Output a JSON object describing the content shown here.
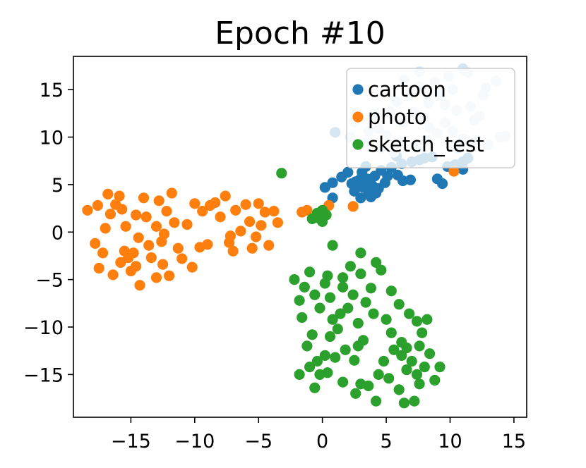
{
  "chart_data": {
    "type": "scatter",
    "title": "Epoch #10",
    "xlabel": "",
    "ylabel": "",
    "xlim": [
      -19.5,
      16
    ],
    "ylim": [
      -19.5,
      18.5
    ],
    "xticks": [
      -15,
      -10,
      -5,
      0,
      5,
      10,
      15
    ],
    "yticks": [
      15,
      10,
      5,
      0,
      -5,
      -10,
      -15
    ],
    "xtick_labels": [
      "−15",
      "−10",
      "−5",
      "0",
      "5",
      "10",
      "15"
    ],
    "ytick_labels": [
      "15",
      "10",
      "5",
      "0",
      "−5",
      "−10",
      "−15"
    ],
    "grid": false,
    "legend_placement": "top-right",
    "series": [
      {
        "name": "cartoon",
        "color": "#1f77b4",
        "points": [
          [
            0.2,
            4.7
          ],
          [
            0.8,
            5.2
          ],
          [
            0.8,
            3.6
          ],
          [
            1.5,
            5.8
          ],
          [
            2.0,
            6.3
          ],
          [
            2.5,
            4.3
          ],
          [
            2.6,
            5.3
          ],
          [
            2.9,
            5.5
          ],
          [
            3.2,
            4.7
          ],
          [
            3.5,
            5.6
          ],
          [
            3.0,
            3.6
          ],
          [
            3.6,
            4.3
          ],
          [
            3.9,
            4.9
          ],
          [
            4.1,
            5.9
          ],
          [
            3.8,
            3.7
          ],
          [
            4.4,
            4.6
          ],
          [
            4.9,
            5.2
          ],
          [
            5.1,
            5.9
          ],
          [
            5.4,
            6.8
          ],
          [
            5.9,
            6.0
          ],
          [
            6.3,
            5.4
          ],
          [
            6.9,
            5.5
          ],
          [
            6.2,
            7.2
          ],
          [
            7.0,
            7.4
          ],
          [
            7.6,
            7.6
          ],
          [
            8.0,
            7.8
          ],
          [
            8.6,
            7.9
          ],
          [
            9.0,
            5.6
          ],
          [
            9.4,
            5.1
          ],
          [
            9.8,
            6.9
          ],
          [
            10.4,
            7.1
          ],
          [
            11.0,
            6.6
          ],
          [
            11.0,
            7.4
          ],
          [
            11.4,
            7.8
          ],
          [
            3.1,
            6.3
          ],
          [
            3.4,
            6.9
          ],
          [
            4.6,
            6.5
          ],
          [
            5.8,
            8.0
          ],
          [
            2.3,
            5.1
          ],
          [
            3.7,
            5.5
          ],
          [
            4.2,
            4.1
          ],
          [
            2.8,
            4.8
          ]
        ]
      },
      {
        "name": "photo",
        "color": "#ff7f0e",
        "points": [
          [
            -18.4,
            2.3
          ],
          [
            -17.6,
            2.8
          ],
          [
            -17.8,
            -1.2
          ],
          [
            -17.0,
            0.4
          ],
          [
            -16.8,
            4.0
          ],
          [
            -17.2,
            -2.2
          ],
          [
            -17.5,
            -3.8
          ],
          [
            -16.6,
            1.9
          ],
          [
            -16.4,
            -4.5
          ],
          [
            -16.2,
            2.9
          ],
          [
            -15.9,
            3.8
          ],
          [
            -15.7,
            2.4
          ],
          [
            -15.5,
            -2.0
          ],
          [
            -15.8,
            -3.2
          ],
          [
            -15.2,
            -2.7
          ],
          [
            -15.0,
            -4.1
          ],
          [
            -14.6,
            1.8
          ],
          [
            -14.4,
            -0.6
          ],
          [
            -14.8,
            -2.2
          ],
          [
            -14.6,
            -3.6
          ],
          [
            -14.3,
            -5.6
          ],
          [
            -14.0,
            3.6
          ],
          [
            -13.8,
            1.6
          ],
          [
            -13.6,
            -1.4
          ],
          [
            -13.4,
            -2.7
          ],
          [
            -13.0,
            -4.8
          ],
          [
            -12.6,
            -1.0
          ],
          [
            -12.8,
            3.3
          ],
          [
            -12.5,
            -3.4
          ],
          [
            -12.2,
            2.2
          ],
          [
            -12.4,
            -0.2
          ],
          [
            -12.0,
            -4.6
          ],
          [
            -11.6,
            1.0
          ],
          [
            -11.3,
            -1.7
          ],
          [
            -11.0,
            -2.8
          ],
          [
            -10.6,
            0.8
          ],
          [
            -10.2,
            -3.7
          ],
          [
            -9.6,
            -1.6
          ],
          [
            -9.0,
            -1.3
          ],
          [
            -8.8,
            2.8
          ],
          [
            -8.4,
            3.1
          ],
          [
            -8.0,
            1.6
          ],
          [
            -7.6,
            3.8
          ],
          [
            -7.2,
            -0.4
          ],
          [
            -7.3,
            -1.1
          ],
          [
            -6.8,
            2.3
          ],
          [
            -6.4,
            0.1
          ],
          [
            -6.0,
            2.9
          ],
          [
            -5.7,
            1.1
          ],
          [
            -5.5,
            -1.7
          ],
          [
            -5.2,
            -0.5
          ],
          [
            -4.8,
            0.7
          ],
          [
            -4.5,
            2.1
          ],
          [
            -4.2,
            -1.4
          ],
          [
            -3.8,
            2.2
          ],
          [
            -3.5,
            1.0
          ],
          [
            -9.4,
            2.2
          ],
          [
            -10.0,
            3.0
          ],
          [
            -11.8,
            4.1
          ],
          [
            -15.4,
            0.6
          ],
          [
            -13.0,
            0.6
          ],
          [
            -7.0,
            -2.0
          ],
          [
            -5.0,
            3.0
          ],
          [
            -1.6,
            2.1
          ],
          [
            -1.2,
            2.3
          ],
          [
            0.5,
            2.8
          ],
          [
            2.4,
            2.7
          ],
          [
            10.3,
            6.4
          ]
        ]
      },
      {
        "name": "sketch_test",
        "color": "#2ca02c",
        "points": [
          [
            -3.2,
            6.2
          ],
          [
            -0.8,
            1.4
          ],
          [
            -0.4,
            2.0
          ],
          [
            0.0,
            2.3
          ],
          [
            0.3,
            1.8
          ],
          [
            0.0,
            1.1
          ],
          [
            -0.3,
            1.5
          ],
          [
            0.8,
            -1.4
          ],
          [
            -2.2,
            -5.0
          ],
          [
            -1.8,
            -7.2
          ],
          [
            -1.6,
            -9.0
          ],
          [
            -1.4,
            -5.8
          ],
          [
            -1.0,
            -4.2
          ],
          [
            -0.6,
            -6.6
          ],
          [
            -0.2,
            -8.0
          ],
          [
            0.2,
            -5.4
          ],
          [
            0.6,
            -6.9
          ],
          [
            0.8,
            -9.2
          ],
          [
            1.2,
            -10.2
          ],
          [
            1.6,
            -5.8
          ],
          [
            2.0,
            -8.0
          ],
          [
            2.4,
            -6.6
          ],
          [
            2.8,
            -9.6
          ],
          [
            3.2,
            -11.4
          ],
          [
            3.4,
            -7.4
          ],
          [
            3.8,
            -5.9
          ],
          [
            4.0,
            -8.6
          ],
          [
            4.2,
            -3.2
          ],
          [
            4.6,
            -4.0
          ],
          [
            5.0,
            -9.2
          ],
          [
            5.4,
            -10.6
          ],
          [
            5.6,
            -12.4
          ],
          [
            6.2,
            -13.0
          ],
          [
            6.6,
            -14.5
          ],
          [
            7.0,
            -13.6
          ],
          [
            7.4,
            -15.0
          ],
          [
            7.6,
            -16.0
          ],
          [
            8.0,
            -14.2
          ],
          [
            8.4,
            -12.8
          ],
          [
            8.8,
            -15.6
          ],
          [
            9.2,
            -14.2
          ],
          [
            6.0,
            -16.6
          ],
          [
            6.4,
            -18.0
          ],
          [
            7.2,
            -17.8
          ],
          [
            4.2,
            -17.8
          ],
          [
            3.0,
            -16.0
          ],
          [
            2.5,
            -13.5
          ],
          [
            1.8,
            -12.4
          ],
          [
            0.6,
            -11.0
          ],
          [
            0.2,
            -13.0
          ],
          [
            -0.2,
            -15.0
          ],
          [
            -0.6,
            -16.4
          ],
          [
            -1.0,
            -14.2
          ],
          [
            -1.8,
            -15.0
          ],
          [
            -0.4,
            -13.6
          ],
          [
            0.4,
            -14.8
          ],
          [
            1.0,
            -13.2
          ],
          [
            1.6,
            -15.8
          ],
          [
            2.6,
            -17.0
          ],
          [
            3.6,
            -16.2
          ],
          [
            4.4,
            -15.0
          ],
          [
            5.2,
            -15.4
          ],
          [
            6.2,
            -11.6
          ],
          [
            6.8,
            -8.6
          ],
          [
            7.4,
            -9.4
          ],
          [
            7.8,
            -10.6
          ],
          [
            8.2,
            -9.2
          ],
          [
            6.0,
            -7.6
          ],
          [
            5.4,
            -6.2
          ],
          [
            3.0,
            -4.4
          ],
          [
            2.2,
            -3.6
          ],
          [
            3.0,
            -2.2
          ],
          [
            1.6,
            -4.8
          ],
          [
            0.4,
            -4.6
          ],
          [
            -0.8,
            -10.8
          ],
          [
            -1.2,
            -12.0
          ],
          [
            1.4,
            -8.6
          ],
          [
            2.8,
            -12.0
          ],
          [
            4.8,
            -13.6
          ],
          [
            6.6,
            -12.2
          ],
          [
            7.6,
            -12.0
          ]
        ]
      },
      {
        "name": "",
        "color": "#d6e6f2",
        "points": [
          [
            1.0,
            10.5
          ],
          [
            2.2,
            10.0
          ],
          [
            2.5,
            11.6
          ],
          [
            3.4,
            9.4
          ],
          [
            4.0,
            12.4
          ],
          [
            4.4,
            10.9
          ],
          [
            5.0,
            10.2
          ],
          [
            5.3,
            12.7
          ],
          [
            5.8,
            13.7
          ],
          [
            6.3,
            11.5
          ],
          [
            6.8,
            14.4
          ],
          [
            7.2,
            12.6
          ],
          [
            7.6,
            15.3
          ],
          [
            8.0,
            12.0
          ],
          [
            8.3,
            13.6
          ],
          [
            8.8,
            15.8
          ],
          [
            9.2,
            14.4
          ],
          [
            9.6,
            11.5
          ],
          [
            9.9,
            16.4
          ],
          [
            10.2,
            15.0
          ],
          [
            10.5,
            12.8
          ],
          [
            11.0,
            17.2
          ],
          [
            11.4,
            16.8
          ],
          [
            11.9,
            11.8
          ],
          [
            12.3,
            12.2
          ],
          [
            12.6,
            14.4
          ],
          [
            13.0,
            9.2
          ],
          [
            13.6,
            15.9
          ],
          [
            13.9,
            10.0
          ],
          [
            14.3,
            10.1
          ],
          [
            11.0,
            9.8
          ],
          [
            10.2,
            10.6
          ],
          [
            9.0,
            10.4
          ],
          [
            8.2,
            9.6
          ],
          [
            7.4,
            9.0
          ],
          [
            6.2,
            9.5
          ],
          [
            5.6,
            8.4
          ],
          [
            4.6,
            8.8
          ],
          [
            3.6,
            10.6
          ],
          [
            2.7,
            12.6
          ],
          [
            6.4,
            16.0
          ],
          [
            7.6,
            16.9
          ],
          [
            12.8,
            15.2
          ],
          [
            9.6,
            13.4
          ],
          [
            11.6,
            13.2
          ],
          [
            10.6,
            8.8
          ],
          [
            8.4,
            11.0
          ],
          [
            12.0,
            9.6
          ]
        ]
      }
    ]
  }
}
